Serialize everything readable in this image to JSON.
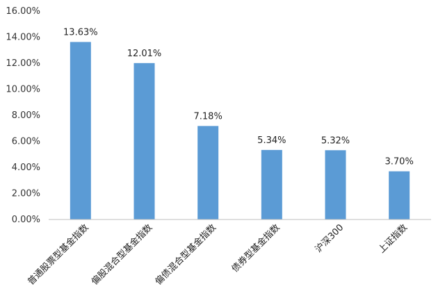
{
  "colors": {
    "bar": "#5b9bd5",
    "axis": "#bfbfbf",
    "text": "#333333"
  },
  "chart_data": {
    "type": "bar",
    "categories": [
      "普通股票型基金指数",
      "偏股混合型基金指数",
      "偏债混合型基金指数",
      "债券型基金指数",
      "沪深300",
      "上证指数"
    ],
    "values": [
      13.63,
      12.01,
      7.18,
      5.34,
      5.32,
      3.7
    ],
    "data_labels": [
      "13.63%",
      "12.01%",
      "7.18%",
      "5.34%",
      "5.32%",
      "3.70%"
    ],
    "y_ticks": [
      "0.00%",
      "2.00%",
      "4.00%",
      "6.00%",
      "8.00%",
      "10.00%",
      "12.00%",
      "14.00%",
      "16.00%"
    ],
    "ylim": [
      0,
      16
    ],
    "y_tick_step": 2,
    "grid": false,
    "legend": "none"
  }
}
